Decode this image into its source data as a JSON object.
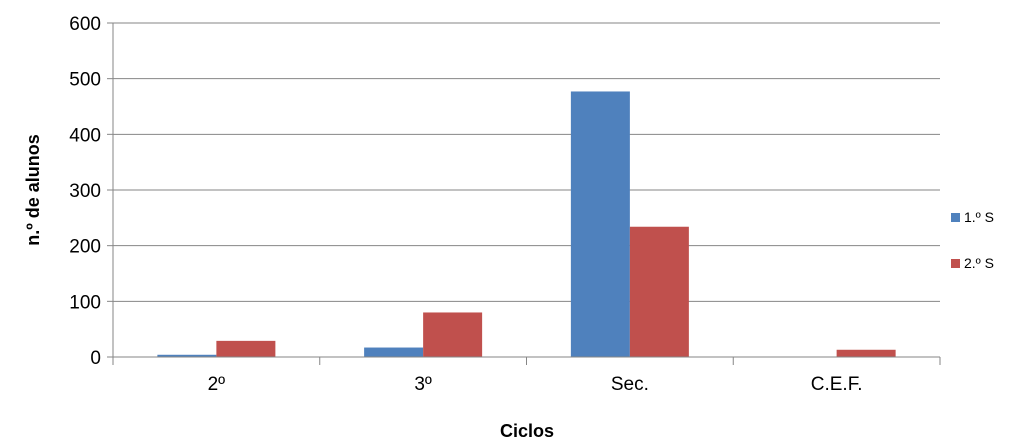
{
  "chart_data": {
    "type": "bar",
    "categories": [
      "2º",
      "3º",
      "Sec.",
      "C.E.F."
    ],
    "series": [
      {
        "name": "1.º S",
        "values": [
          4,
          17,
          477,
          0
        ],
        "color": "#4F81BD"
      },
      {
        "name": "2.º S",
        "values": [
          29,
          80,
          234,
          13
        ],
        "color": "#C0504D"
      }
    ],
    "xlabel": "Ciclos",
    "ylabel": "n.º de alunos",
    "ylim": [
      0,
      600
    ],
    "yticks": [
      0,
      100,
      200,
      300,
      400,
      500,
      600
    ],
    "grid": true,
    "legend": "right"
  }
}
